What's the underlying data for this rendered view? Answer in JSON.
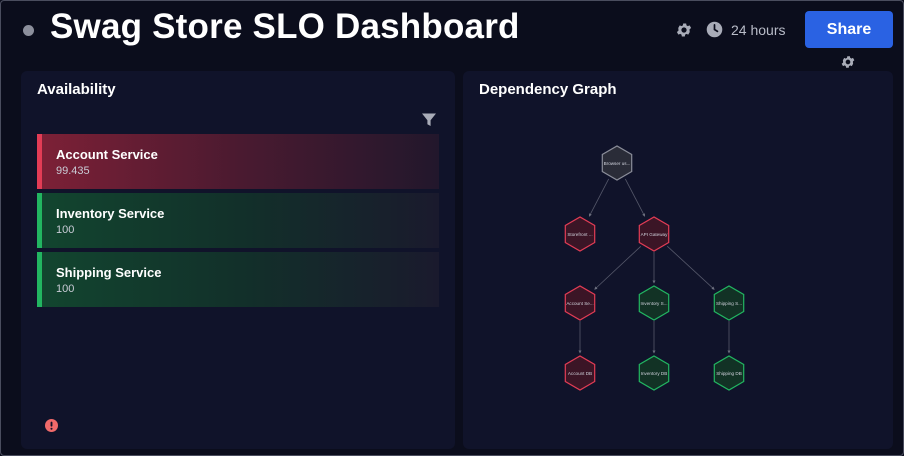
{
  "header": {
    "title": "Swag Store SLO Dashboard",
    "time_range": "24 hours",
    "share_label": "Share",
    "icons": [
      "status-dot",
      "gear-icon",
      "clock-icon",
      "gear-icon"
    ]
  },
  "availability": {
    "title": "Availability",
    "services": [
      {
        "name": "Account Service",
        "value": "99.435",
        "status": "red"
      },
      {
        "name": "Inventory Service",
        "value": "100",
        "status": "green"
      },
      {
        "name": "Shipping Service",
        "value": "100",
        "status": "green"
      }
    ]
  },
  "dependency_graph": {
    "title": "Dependency Graph",
    "nodes": [
      {
        "id": "browser",
        "label": "Browser us...",
        "status": "gray"
      },
      {
        "id": "storefront",
        "label": "Storefront ...",
        "status": "red"
      },
      {
        "id": "api",
        "label": "API Gateway",
        "status": "red"
      },
      {
        "id": "account",
        "label": "Account Se...",
        "status": "red"
      },
      {
        "id": "inventory",
        "label": "Inventory S...",
        "status": "green"
      },
      {
        "id": "shipping",
        "label": "Shipping S...",
        "status": "green"
      },
      {
        "id": "account_db",
        "label": "Account DB",
        "status": "red"
      },
      {
        "id": "inventory_db",
        "label": "Inventory DB",
        "status": "green"
      },
      {
        "id": "shipping_db",
        "label": "Shipping DB",
        "status": "green"
      }
    ],
    "edges": [
      [
        "browser",
        "storefront"
      ],
      [
        "browser",
        "api"
      ],
      [
        "api",
        "account"
      ],
      [
        "api",
        "inventory"
      ],
      [
        "api",
        "shipping"
      ],
      [
        "account",
        "account_db"
      ],
      [
        "inventory",
        "inventory_db"
      ],
      [
        "shipping",
        "shipping_db"
      ]
    ]
  },
  "colors": {
    "accent": "#2a62e3",
    "red": "#e23c55",
    "green": "#22b561",
    "gray": "#8a8d99",
    "alert": "#f06a6a"
  }
}
